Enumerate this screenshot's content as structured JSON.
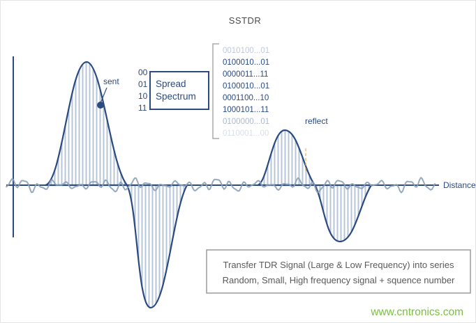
{
  "title": "SSTDR",
  "labels": {
    "sent": "sent",
    "reflect": "reflect",
    "distance": "Distance"
  },
  "codes": [
    "00",
    "01",
    "10",
    "11"
  ],
  "spread_spectrum": {
    "line1": "Spread",
    "line2": "Spectrum"
  },
  "sequences": [
    {
      "text": "0010100...01",
      "dim": true
    },
    {
      "text": "0100010...01",
      "dim": false
    },
    {
      "text": "0000011...11",
      "dim": false
    },
    {
      "text": "0100010...01",
      "dim": false
    },
    {
      "text": "0001100...10",
      "dim": false
    },
    {
      "text": "1000101...11",
      "dim": false
    },
    {
      "text": "0100000...01",
      "dim": true
    },
    {
      "text": "0110001...00",
      "dim": true
    }
  ],
  "note": {
    "line1": "Transfer TDR Signal (Large & Low Frequency) into series",
    "line2": "Random, Small, High frequency signal + squence number"
  },
  "watermark": "www.cntronics.com",
  "colors": {
    "navy": "#2a4a80",
    "hatch": "#b7c5d8",
    "noise": "#8ba0b8",
    "green": "#7cc043",
    "gray_text": "#595959",
    "box_border": "#9a9a9a"
  }
}
